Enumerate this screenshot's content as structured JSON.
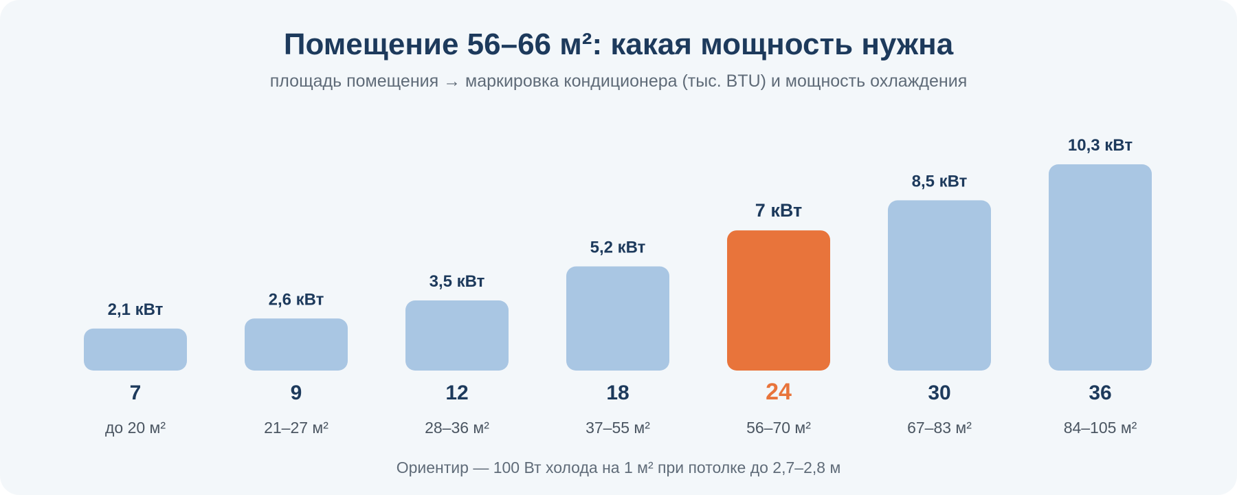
{
  "page": {
    "title": "Помещение 56–66 м²: какая мощность нужна",
    "subtitle": "площадь помещения → маркировка кондиционера (тыс. BTU) и мощность охлаждения",
    "footnote": "Ориентир — 100 Вт холода на 1 м² при потолке до 2,7–2,8 м"
  },
  "colors": {
    "bar": "#a9c6e3",
    "highlight": "#e8743b",
    "text_dark": "#1d3a5c",
    "text_muted": "#4a5561",
    "card": "#f3f7fa"
  },
  "chart_data": {
    "type": "bar",
    "title": "Помещение 56–66 м²: какая мощность нужна",
    "subtitle": "площадь помещения → маркировка кондиционера (тыс. BTU) и мощность охлаждения",
    "categories": [
      "7",
      "9",
      "12",
      "18",
      "24",
      "30",
      "36"
    ],
    "area_labels": [
      "до 20 м²",
      "21–27 м²",
      "28–36 м²",
      "37–55 м²",
      "56–70 м²",
      "67–83 м²",
      "84–105 м²"
    ],
    "values": [
      2.1,
      2.6,
      3.5,
      5.2,
      7.0,
      8.5,
      10.3
    ],
    "value_labels": [
      "2,1 кВт",
      "2,6 кВт",
      "3,5 кВт",
      "5,2 кВт",
      "7 кВт",
      "8,5 кВт",
      "10,3 кВт"
    ],
    "highlight_index": 4,
    "ylim": [
      0,
      10.3
    ],
    "grid": false,
    "xlabel": "",
    "ylabel": ""
  }
}
